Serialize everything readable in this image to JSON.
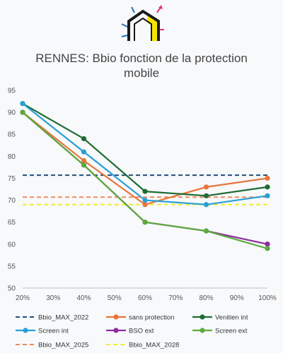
{
  "logo": {
    "icon": "house-insulation-icon",
    "colors": {
      "outline": "#1a1a1a",
      "wall": "#f5e600",
      "arrow_out": "#e8307a",
      "arrow_in": "#2a6fb5"
    }
  },
  "chart_data": {
    "type": "line",
    "title": "RENNES: Bbio fonction de la protection mobile",
    "title_lines": [
      "RENNES: Bbio fonction de la protection",
      "mobile"
    ],
    "x": [
      "20%",
      "40%",
      "60%",
      "80%",
      "100%"
    ],
    "xticks": [
      "20%",
      "30%",
      "40%",
      "50%",
      "60%",
      "70%",
      "80%",
      "90%",
      "100%"
    ],
    "xlim": [
      20,
      100
    ],
    "ylim": [
      50,
      95
    ],
    "yticks": [
      50,
      55,
      60,
      65,
      70,
      75,
      80,
      85,
      90,
      95
    ],
    "grid": false,
    "legend_position": "bottom",
    "series": [
      {
        "name": "sans protection",
        "color": "#e8743b",
        "values": [
          90,
          79,
          69,
          73,
          75
        ]
      },
      {
        "name": "Venitien int",
        "color": "#1f6b33",
        "values": [
          92,
          84,
          72,
          71,
          73
        ]
      },
      {
        "name": "Screen int",
        "color": "#2a9fd6",
        "values": [
          92,
          81,
          70,
          69,
          71
        ]
      },
      {
        "name": "BSO ext",
        "color": "#8e2c9e",
        "values": [
          90,
          78,
          65,
          63,
          60
        ]
      },
      {
        "name": "Screen ext",
        "color": "#5daa3c",
        "values": [
          90,
          78,
          65,
          63,
          59
        ]
      }
    ],
    "reference_lines": [
      {
        "name": "Bbio_MAX_2022",
        "value": 75.7,
        "color": "#1f4e79"
      },
      {
        "name": "Bbio_MAX_2025",
        "value": 70.7,
        "color": "#f08a5d"
      },
      {
        "name": "Bbio_MAX_2028",
        "value": 69,
        "color": "#f2ee2b"
      }
    ],
    "legend": [
      {
        "name": "Bbio_MAX_2022",
        "kind": "dashed"
      },
      {
        "name": "sans protection",
        "kind": "line"
      },
      {
        "name": "Venitien int",
        "kind": "line"
      },
      {
        "name": "Screen int",
        "kind": "line"
      },
      {
        "name": "BSO ext",
        "kind": "line"
      },
      {
        "name": "Screen ext",
        "kind": "line"
      },
      {
        "name": "Bbio_MAX_2025",
        "kind": "dashed"
      },
      {
        "name": "Bbio_MAX_2028",
        "kind": "dashed"
      }
    ]
  }
}
